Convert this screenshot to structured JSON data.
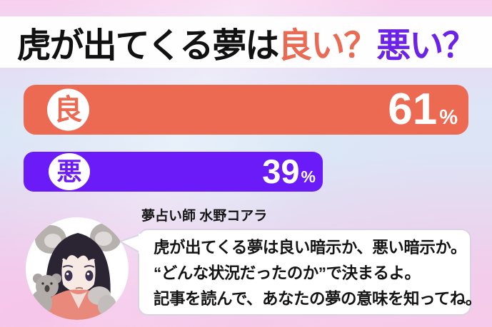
{
  "title": {
    "prefix": "虎が出てくる夢は",
    "good_word": "良い？",
    "bad_word": "悪い？"
  },
  "chart_data": {
    "type": "bar",
    "orientation": "horizontal",
    "title": "虎が出てくる夢は良い？悪い？",
    "categories": [
      "良",
      "悪"
    ],
    "values": [
      61,
      39
    ],
    "unit": "%",
    "xlim": [
      0,
      100
    ],
    "bar_colors": [
      "#ec6a52",
      "#6b1bf7"
    ],
    "legend": "none",
    "grid": false
  },
  "bars": [
    {
      "kanji": "良",
      "value": 61,
      "pct_label": "61",
      "unit": "%"
    },
    {
      "kanji": "悪",
      "value": 39,
      "pct_label": "39",
      "unit": "%"
    }
  ],
  "expert": {
    "caption": "夢占い師 水野コアラ",
    "speech": [
      "虎が出てくる夢は良い暗示か、悪い暗示か。",
      "“どんな状況だったのか”で決まるよ。",
      "記事を読んで、あなたの夢の意味を知ってね。"
    ]
  },
  "colors": {
    "good_bar": "#ec6a52",
    "bad_bar": "#6b1bf7",
    "title_good": "#e96b54",
    "title_bad": "#6c22e8",
    "text_black": "#111111",
    "background_top": "#f8d0ee",
    "background_mid": "#d9e8f7",
    "background_bottom": "#f5cfeb"
  }
}
